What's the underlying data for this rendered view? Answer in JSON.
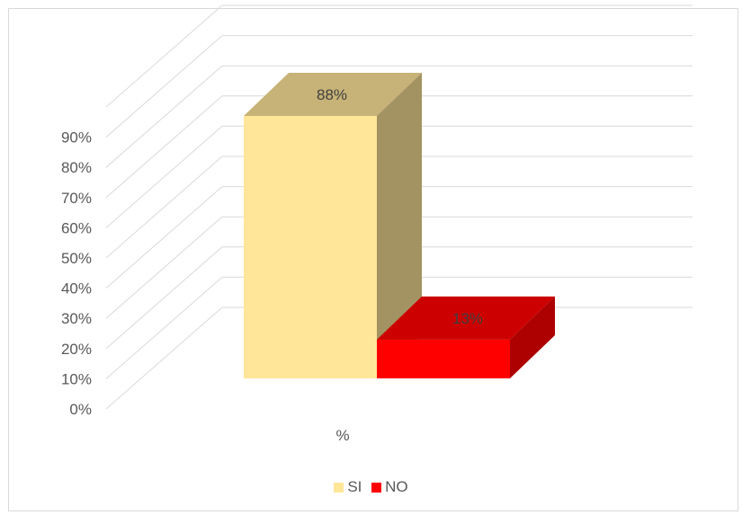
{
  "chart_data": {
    "type": "bar",
    "style": "3d-column",
    "categories": [
      "%"
    ],
    "series": [
      {
        "name": "SI",
        "values": [
          0.88
        ],
        "label": "88%",
        "color": "#FFE699"
      },
      {
        "name": "NO",
        "values": [
          0.13
        ],
        "label": "13%",
        "color": "#FF0000"
      }
    ],
    "yticks": [
      "0%",
      "10%",
      "20%",
      "30%",
      "40%",
      "50%",
      "60%",
      "70%",
      "80%",
      "90%"
    ],
    "ylim": [
      0,
      0.9
    ],
    "grid": true,
    "legend": "bottom"
  }
}
